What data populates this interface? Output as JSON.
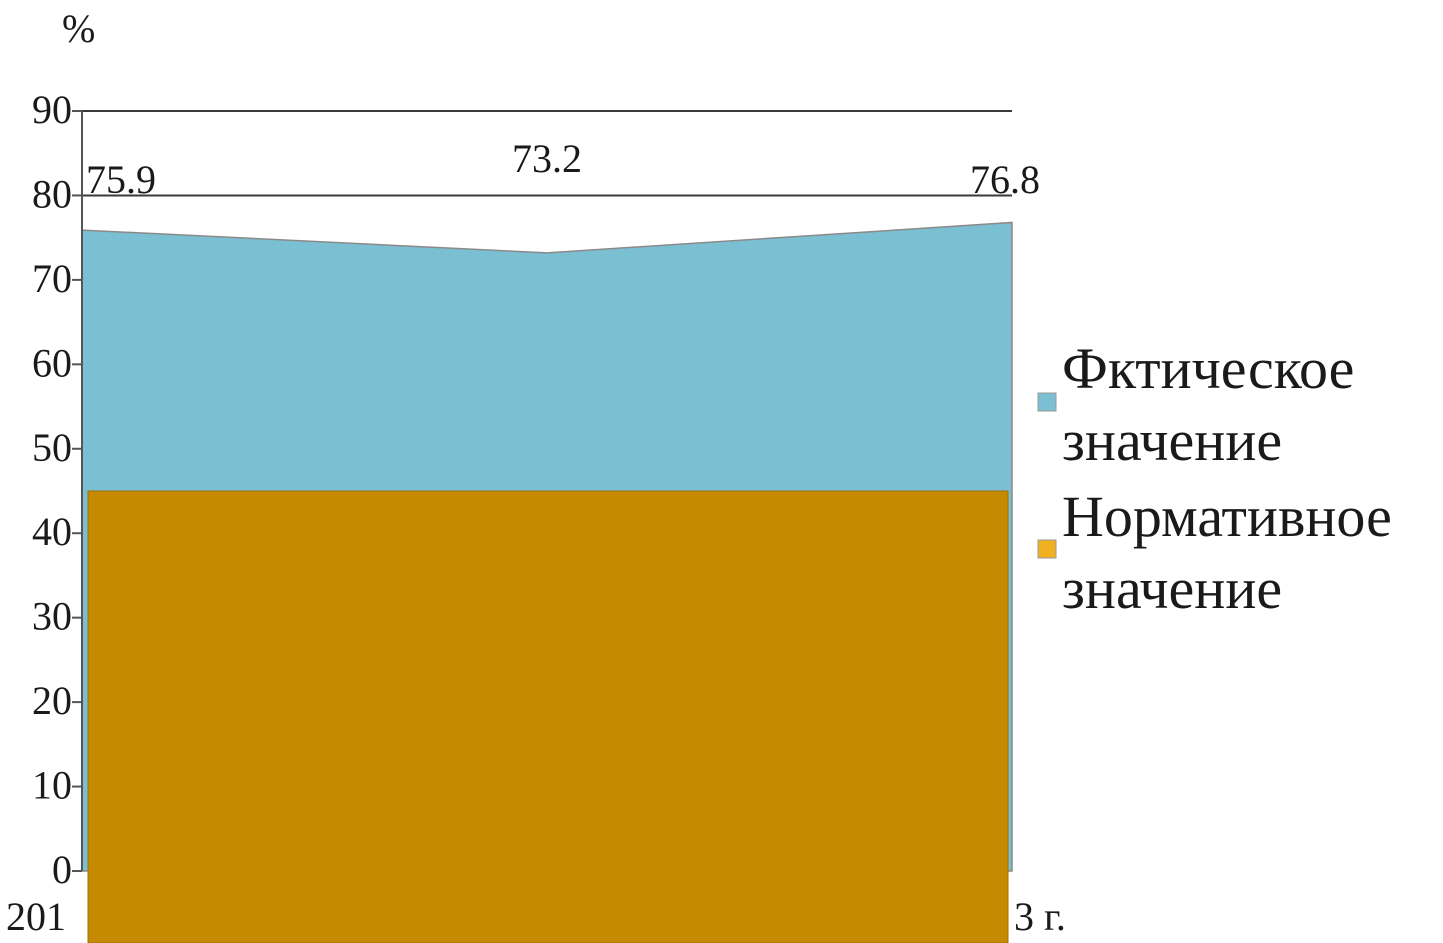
{
  "chart_data": {
    "type": "area",
    "title": "",
    "unit_label": "%",
    "xlabel": "",
    "ylabel": "",
    "ylim": [
      0,
      90
    ],
    "yticks": [
      0,
      10,
      20,
      30,
      40,
      50,
      60,
      70,
      80,
      90
    ],
    "gridlines_at": [
      80,
      90
    ],
    "x_labels_visible": [
      "201",
      "3 г."
    ],
    "series": [
      {
        "name_lines": [
          "Фктическое",
          "значение"
        ],
        "color": "#7bbfd2",
        "values": [
          75.9,
          73.2,
          76.8
        ],
        "data_labels": [
          "75.9",
          "73.2",
          "76.8"
        ]
      },
      {
        "name_lines": [
          "Нормативное",
          "значение"
        ],
        "color": "#c68a00",
        "legend_color": "#f0b020",
        "values": [
          45,
          45,
          45
        ]
      }
    ],
    "legend_position": "right"
  }
}
